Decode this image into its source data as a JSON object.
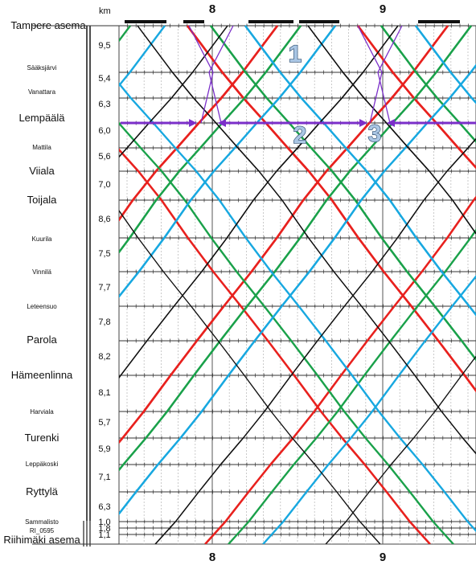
{
  "header": {
    "distance_unit": "km"
  },
  "time_axis": {
    "hours": [
      "8",
      "9"
    ]
  },
  "stations": [
    {
      "name": "Tampere asema",
      "major": true
    },
    {
      "name": "Sääksjärvi",
      "major": false
    },
    {
      "name": "Vanattara",
      "major": false
    },
    {
      "name": "Lempäälä",
      "major": true
    },
    {
      "name": "Mattila",
      "major": false
    },
    {
      "name": "Viiala",
      "major": true
    },
    {
      "name": "Toijala",
      "major": true
    },
    {
      "name": "Kuurila",
      "major": false
    },
    {
      "name": "Vinnilä",
      "major": false
    },
    {
      "name": "Leteensuo",
      "major": false
    },
    {
      "name": "Parola",
      "major": true
    },
    {
      "name": "Hämeenlinna",
      "major": true
    },
    {
      "name": "Harviala",
      "major": false
    },
    {
      "name": "Turenki",
      "major": true
    },
    {
      "name": "Leppäkoski",
      "major": false
    },
    {
      "name": "Ryttylä",
      "major": true
    },
    {
      "name": "Sammalisto",
      "major": false
    },
    {
      "name": "RI_0595",
      "major": false
    },
    {
      "name": "Riihimäki asema",
      "major": true
    }
  ],
  "segment_distances": [
    "9,5",
    "5,4",
    "6,3",
    "6,0",
    "5,6",
    "7,0",
    "8,6",
    "7,5",
    "7,7",
    "7,8",
    "8,2",
    "8,1",
    "5,7",
    "5,9",
    "7,1",
    "6,3",
    "1,0",
    "1,8",
    "1,1"
  ],
  "callouts": [
    "1",
    "2",
    "3"
  ],
  "colors": {
    "red": "#e8211e",
    "green": "#1aa14a",
    "blue": "#18a8e0",
    "black": "#111111",
    "purple": "#7b2fc9",
    "grid": "#bdbdbd",
    "callout_fill": "#aac6e4"
  }
}
